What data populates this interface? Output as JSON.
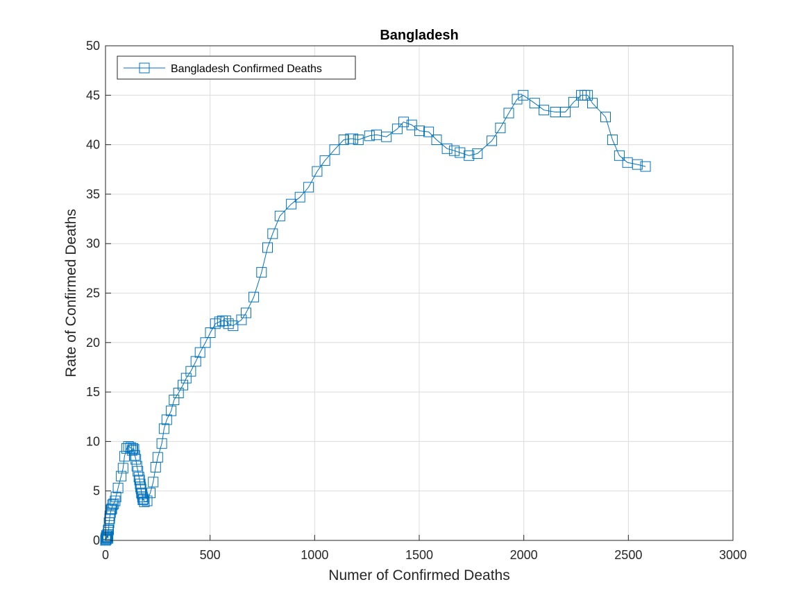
{
  "chart_data": {
    "type": "line",
    "title": "Bangladesh",
    "xlabel": "Numer of Confirmed Deaths",
    "ylabel": "Rate of Confirmed Deaths",
    "xlim": [
      0,
      3000
    ],
    "ylim": [
      0,
      50
    ],
    "xticks": [
      0,
      500,
      1000,
      1500,
      2000,
      2500,
      3000
    ],
    "yticks": [
      0,
      5,
      10,
      15,
      20,
      25,
      30,
      35,
      40,
      45,
      50
    ],
    "grid": true,
    "legend_position": "top-left",
    "series": [
      {
        "name": "Bangladesh Confirmed Deaths",
        "color": "#0072BD",
        "marker": "square",
        "x": [
          0,
          1,
          2,
          3,
          4,
          5,
          5,
          6,
          8,
          9,
          10,
          12,
          13,
          15,
          17,
          20,
          21,
          24,
          27,
          30,
          34,
          39,
          46,
          50,
          60,
          75,
          84,
          91,
          101,
          110,
          120,
          127,
          131,
          136,
          140,
          145,
          150,
          155,
          160,
          163,
          166,
          168,
          170,
          172,
          175,
          177,
          179,
          182,
          186,
          199,
          214,
          228,
          240,
          250,
          269,
          280,
          293,
          314,
          328,
          349,
          370,
          386,
          408,
          432,
          452,
          478,
          501,
          525,
          545,
          559,
          575,
          588,
          610,
          650,
          672,
          709,
          746,
          775,
          799,
          834,
          888,
          930,
          971,
          1012,
          1049,
          1095,
          1139,
          1171,
          1183,
          1209,
          1262,
          1296,
          1343,
          1395,
          1425,
          1464,
          1502,
          1545,
          1583,
          1633,
          1668,
          1695,
          1738,
          1778,
          1847,
          1888,
          1928,
          1968,
          1997,
          2052,
          2096,
          2151,
          2199,
          2238,
          2275,
          2292,
          2305,
          2328,
          2391,
          2424,
          2457,
          2496,
          2543,
          2582
        ],
        "y": [
          0,
          0.1,
          0.2,
          0.3,
          0.1,
          0.5,
          0.2,
          0.3,
          0.4,
          0.3,
          0.6,
          0.2,
          1.0,
          1.1,
          1.8,
          2.2,
          2.5,
          2.8,
          3.1,
          3.2,
          3.6,
          3.7,
          4.0,
          4.4,
          5.3,
          6.5,
          7.3,
          8.5,
          9.3,
          9.5,
          9.4,
          9.1,
          9.3,
          9.2,
          8.6,
          8.2,
          7.5,
          7.0,
          6.4,
          6.1,
          5.7,
          5.4,
          5.2,
          4.8,
          4.7,
          4.4,
          4.1,
          4.2,
          3.9,
          4.0,
          4.8,
          5.9,
          7.4,
          8.4,
          9.8,
          11.3,
          12.2,
          13.1,
          14.2,
          14.9,
          15.7,
          16.4,
          17.1,
          18.1,
          19.0,
          20.0,
          21.0,
          21.9,
          22.1,
          22.2,
          22.2,
          21.9,
          21.7,
          22.3,
          23.0,
          24.6,
          27.1,
          29.6,
          31.0,
          32.8,
          34.0,
          34.7,
          35.7,
          37.3,
          38.4,
          39.5,
          40.5,
          40.6,
          40.6,
          40.5,
          40.9,
          41.0,
          40.8,
          41.6,
          42.3,
          42.0,
          41.4,
          41.3,
          40.5,
          39.6,
          39.4,
          39.2,
          38.9,
          39.1,
          40.4,
          41.7,
          43.2,
          44.6,
          45.0,
          44.2,
          43.5,
          43.3,
          43.3,
          44.3,
          45.0,
          45.0,
          45.0,
          44.2,
          42.8,
          40.5,
          38.9,
          38.2,
          38.0,
          37.8
        ]
      }
    ]
  }
}
